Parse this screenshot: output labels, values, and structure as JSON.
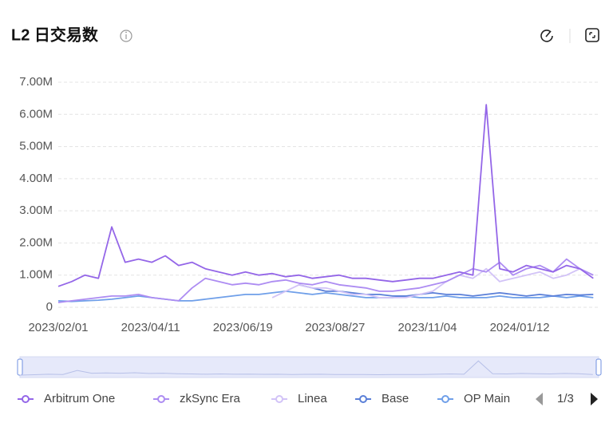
{
  "chart_data": {
    "type": "line",
    "title": "L2 日交易数",
    "legend_page": "1/3",
    "x": [
      "2023/02/01",
      "2023/02/11",
      "2023/02/21",
      "2023/03/03",
      "2023/03/13",
      "2023/03/23",
      "2023/04/02",
      "2023/04/12",
      "2023/04/22",
      "2023/05/02",
      "2023/05/12",
      "2023/05/22",
      "2023/06/01",
      "2023/06/11",
      "2023/06/21",
      "2023/07/01",
      "2023/07/11",
      "2023/07/21",
      "2023/07/31",
      "2023/08/10",
      "2023/08/20",
      "2023/08/30",
      "2023/09/09",
      "2023/09/19",
      "2023/09/29",
      "2023/10/09",
      "2023/10/19",
      "2023/10/29",
      "2023/11/08",
      "2023/11/18",
      "2023/11/28",
      "2023/12/08",
      "2023/12/18",
      "2023/12/28",
      "2024/01/07",
      "2024/01/17",
      "2024/01/27",
      "2024/02/06",
      "2024/02/16",
      "2024/02/26",
      "2024/03/07"
    ],
    "xlim": [
      "2023/02/01",
      "2024/03/11"
    ],
    "xticks": [
      "2023/02/01",
      "2023/04/11",
      "2023/06/19",
      "2023/08/27",
      "2023/11/04",
      "2024/01/12"
    ],
    "ylim": [
      0,
      7000000
    ],
    "yticks": [
      0,
      {
        "value": 1000000,
        "label": "1.00M"
      },
      {
        "value": 2000000,
        "label": "2.00M"
      },
      {
        "value": 3000000,
        "label": "3.00M"
      },
      {
        "value": 4000000,
        "label": "4.00M"
      },
      {
        "value": 5000000,
        "label": "5.00M"
      },
      {
        "value": 6000000,
        "label": "6.00M"
      },
      {
        "value": 7000000,
        "label": "7.00M"
      }
    ],
    "grid": true,
    "series": [
      {
        "name": "Arbitrum One",
        "color": "#9466e8",
        "values": [
          650000,
          800000,
          1000000,
          900000,
          2500000,
          1400000,
          1500000,
          1400000,
          1600000,
          1300000,
          1400000,
          1200000,
          1100000,
          1000000,
          1100000,
          1000000,
          1050000,
          950000,
          1000000,
          900000,
          950000,
          1000000,
          900000,
          900000,
          850000,
          800000,
          850000,
          900000,
          900000,
          1000000,
          1100000,
          1000000,
          6300000,
          1200000,
          1100000,
          1300000,
          1200000,
          1100000,
          1300000,
          1200000,
          900000
        ]
      },
      {
        "name": "zkSync Era",
        "color": "#ad8cf2",
        "values": [
          150000,
          200000,
          250000,
          300000,
          350000,
          350000,
          400000,
          300000,
          250000,
          200000,
          600000,
          900000,
          800000,
          700000,
          750000,
          700000,
          800000,
          850000,
          750000,
          700000,
          800000,
          700000,
          650000,
          600000,
          500000,
          500000,
          550000,
          600000,
          700000,
          800000,
          1000000,
          1200000,
          1100000,
          1400000,
          1000000,
          1200000,
          1300000,
          1100000,
          1500000,
          1200000,
          1000000
        ]
      },
      {
        "name": "Linea",
        "color": "#d2c3f7",
        "values": [
          null,
          null,
          null,
          null,
          null,
          null,
          null,
          null,
          null,
          null,
          null,
          null,
          null,
          null,
          null,
          null,
          300000,
          500000,
          700000,
          600000,
          600000,
          500000,
          400000,
          400000,
          300000,
          300000,
          300000,
          400000,
          500000,
          800000,
          1000000,
          900000,
          1200000,
          800000,
          900000,
          1000000,
          1100000,
          900000,
          1000000,
          1200000,
          1000000
        ]
      },
      {
        "name": "Base",
        "color": "#5a7fd8",
        "values": [
          null,
          null,
          null,
          null,
          null,
          null,
          null,
          null,
          null,
          null,
          null,
          null,
          null,
          null,
          null,
          null,
          null,
          null,
          700000,
          600000,
          500000,
          500000,
          450000,
          400000,
          400000,
          350000,
          350000,
          400000,
          450000,
          400000,
          400000,
          350000,
          400000,
          450000,
          400000,
          350000,
          400000,
          350000,
          400000,
          380000,
          400000
        ]
      },
      {
        "name": "OP Main",
        "color": "#6f9fe9",
        "values": [
          200000,
          180000,
          200000,
          220000,
          250000,
          300000,
          350000,
          300000,
          250000,
          200000,
          200000,
          250000,
          300000,
          350000,
          400000,
          400000,
          450000,
          500000,
          450000,
          400000,
          450000,
          400000,
          350000,
          300000,
          300000,
          300000,
          350000,
          300000,
          300000,
          350000,
          300000,
          300000,
          300000,
          350000,
          300000,
          300000,
          300000,
          350000,
          300000,
          350000,
          300000
        ]
      }
    ]
  }
}
